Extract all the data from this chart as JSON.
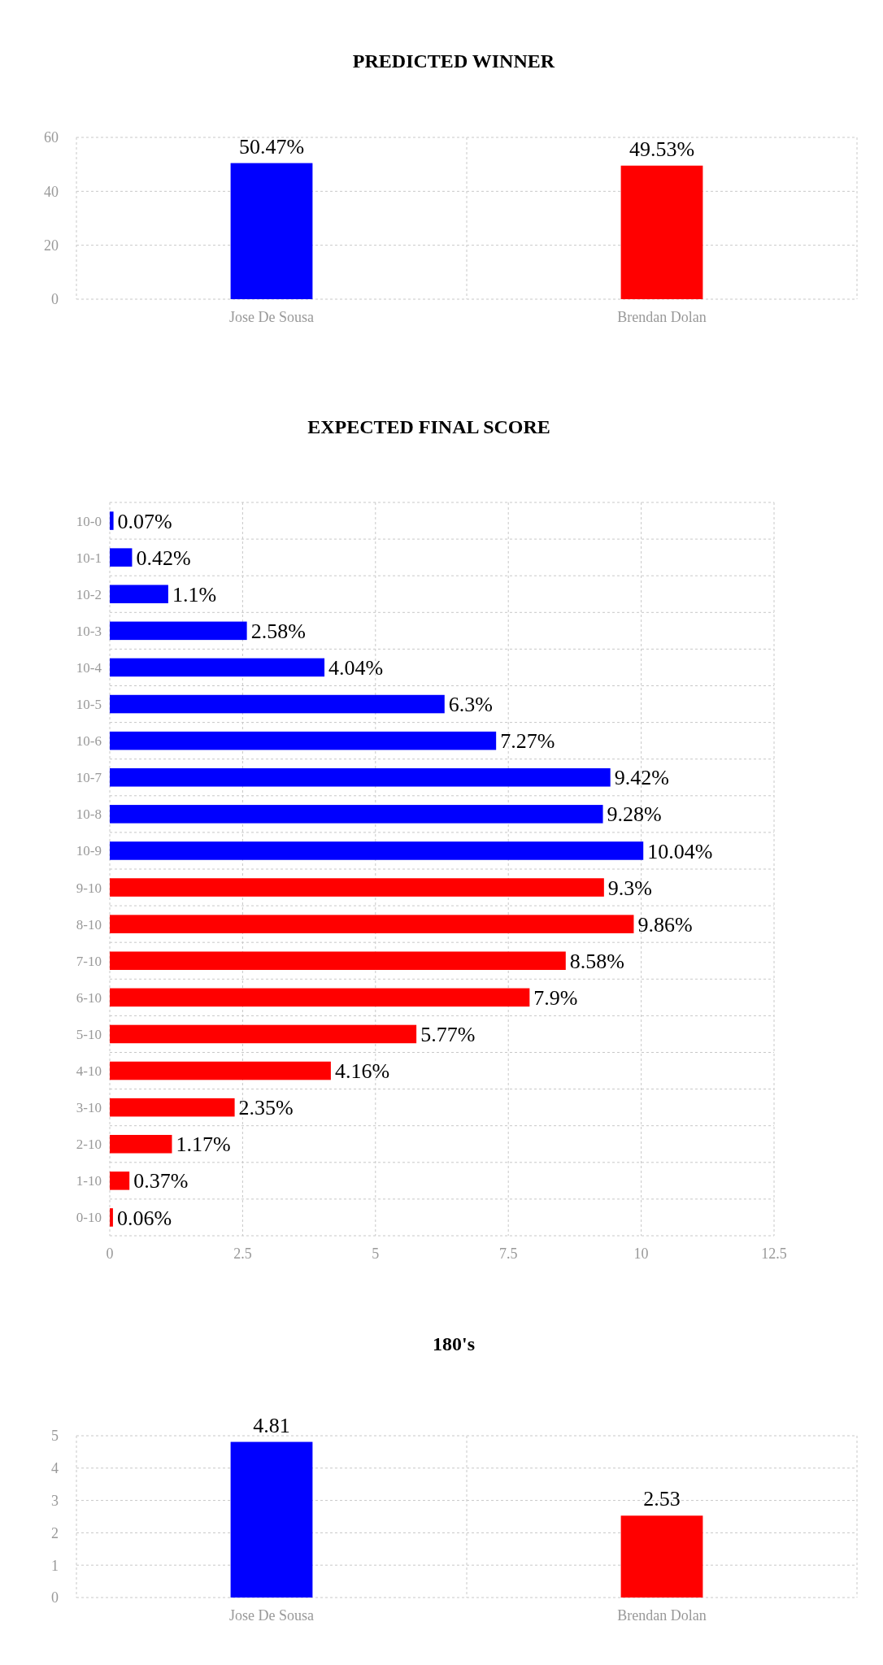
{
  "chart_data": [
    {
      "type": "bar",
      "title": "PREDICTED WINNER",
      "categories": [
        "Jose De Sousa",
        "Brendan Dolan"
      ],
      "values": [
        50.47,
        49.53
      ],
      "colors": [
        "#0000ff",
        "#ff0000"
      ],
      "value_labels": [
        "50.47%",
        "49.53%"
      ],
      "ylim": [
        0,
        60
      ],
      "yticks": [
        0,
        20,
        40,
        60
      ],
      "grid": true
    },
    {
      "type": "bar",
      "title": "EXPECTED FINAL SCORE",
      "orientation": "horizontal",
      "categories": [
        "10-0",
        "10-1",
        "10-2",
        "10-3",
        "10-4",
        "10-5",
        "10-6",
        "10-7",
        "10-8",
        "10-9",
        "9-10",
        "8-10",
        "7-10",
        "6-10",
        "5-10",
        "4-10",
        "3-10",
        "2-10",
        "1-10",
        "0-10"
      ],
      "values": [
        0.07,
        0.42,
        1.1,
        2.58,
        4.04,
        6.3,
        7.27,
        9.42,
        9.28,
        10.04,
        9.3,
        9.86,
        8.58,
        7.9,
        5.77,
        4.16,
        2.35,
        1.17,
        0.37,
        0.06
      ],
      "colors": [
        "#0000ff",
        "#0000ff",
        "#0000ff",
        "#0000ff",
        "#0000ff",
        "#0000ff",
        "#0000ff",
        "#0000ff",
        "#0000ff",
        "#0000ff",
        "#ff0000",
        "#ff0000",
        "#ff0000",
        "#ff0000",
        "#ff0000",
        "#ff0000",
        "#ff0000",
        "#ff0000",
        "#ff0000",
        "#ff0000"
      ],
      "value_labels": [
        "0.07%",
        "0.42%",
        "1.1%",
        "2.58%",
        "4.04%",
        "6.3%",
        "7.27%",
        "9.42%",
        "9.28%",
        "10.04%",
        "9.3%",
        "9.86%",
        "8.58%",
        "7.9%",
        "5.77%",
        "4.16%",
        "2.35%",
        "1.17%",
        "0.37%",
        "0.06%"
      ],
      "xlim": [
        0,
        12.5
      ],
      "xticks": [
        0,
        2.5,
        5,
        7.5,
        10,
        12.5
      ],
      "grid": true
    },
    {
      "type": "bar",
      "title": "180's",
      "categories": [
        "Jose De Sousa",
        "Brendan Dolan"
      ],
      "values": [
        4.81,
        2.53
      ],
      "colors": [
        "#0000ff",
        "#ff0000"
      ],
      "data_labels": true,
      "ylim": [
        0,
        5
      ],
      "yticks": [
        0,
        1,
        2,
        3,
        4,
        5
      ],
      "grid": true
    }
  ]
}
